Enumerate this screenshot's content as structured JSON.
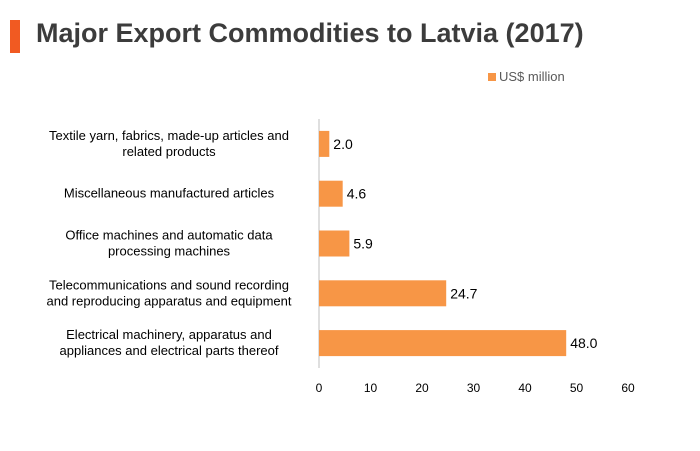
{
  "chart_data": {
    "type": "bar",
    "orientation": "horizontal",
    "title": "Major Export Commodities to Latvia (2017)",
    "legend_position": "top-right",
    "categories": [
      [
        "Textile yarn, fabrics, made-up articles and",
        "related products"
      ],
      [
        "Miscellaneous manufactured articles"
      ],
      [
        "Office machines and automatic data",
        "processing machines"
      ],
      [
        "Telecommunications and sound recording",
        "and reproducing apparatus and equipment"
      ],
      [
        "Electrical machinery, apparatus and",
        "appliances and electrical parts thereof"
      ]
    ],
    "series": [
      {
        "name": "US$ million",
        "color": "#f79646",
        "values": [
          2.0,
          4.6,
          5.9,
          24.7,
          48.0
        ],
        "labels": [
          "2.0",
          "4.6",
          "5.9",
          "24.7",
          "48.0"
        ]
      }
    ],
    "xlim": [
      0,
      60
    ],
    "xticks": [
      "0",
      "10",
      "20",
      "30",
      "40",
      "50",
      "60"
    ],
    "grid": false
  },
  "colors": {
    "accent": "#f15a22",
    "bar": "#f79646"
  }
}
